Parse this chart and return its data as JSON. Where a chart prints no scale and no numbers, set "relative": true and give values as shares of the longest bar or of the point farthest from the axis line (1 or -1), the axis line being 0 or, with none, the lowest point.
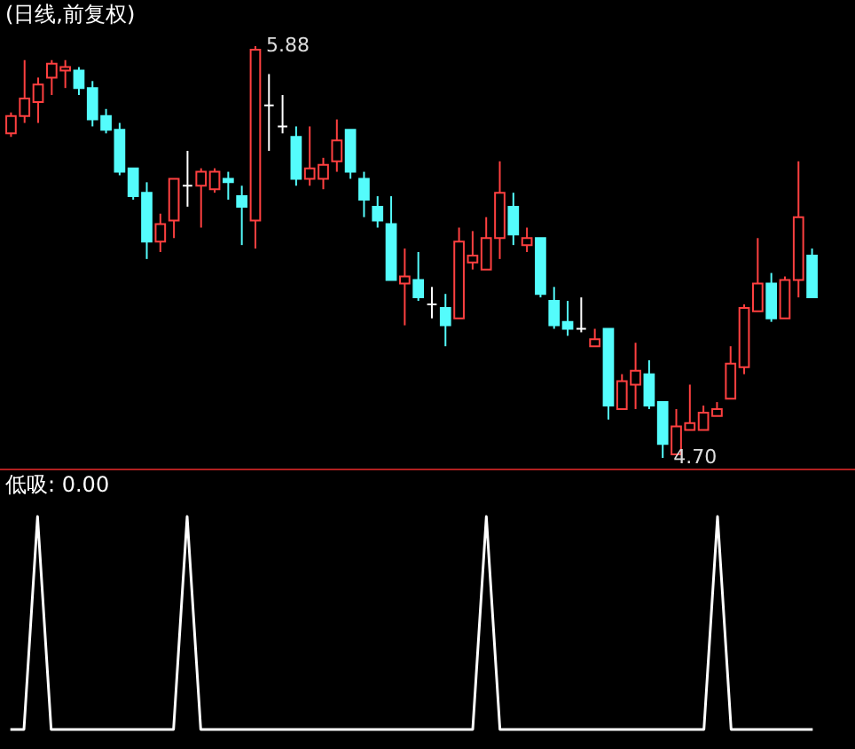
{
  "chart_data": [
    {
      "type": "candlestick",
      "title": "(日线,前复权)",
      "categories": [
        null,
        null,
        null,
        null,
        null,
        null,
        null,
        null,
        null,
        null,
        null,
        null,
        null,
        null,
        null,
        null,
        null,
        null,
        null,
        null,
        null,
        null,
        null,
        null,
        null,
        null,
        null,
        null,
        null,
        null,
        null,
        null,
        null,
        null,
        null,
        null,
        null,
        null,
        null,
        null,
        null,
        null,
        null,
        null,
        null,
        null,
        null,
        null,
        null,
        null,
        null,
        null,
        null,
        null,
        null,
        null,
        null,
        null,
        null,
        null
      ],
      "ohlc": [
        [
          5.63,
          5.69,
          5.62,
          5.68
        ],
        [
          5.68,
          5.84,
          5.66,
          5.73
        ],
        [
          5.72,
          5.79,
          5.66,
          5.77
        ],
        [
          5.79,
          5.84,
          5.74,
          5.83
        ],
        [
          5.81,
          5.84,
          5.76,
          5.82
        ],
        [
          5.81,
          5.82,
          5.74,
          5.76
        ],
        [
          5.76,
          5.78,
          5.65,
          5.67
        ],
        [
          5.68,
          5.7,
          5.63,
          5.64
        ],
        [
          5.64,
          5.66,
          5.51,
          5.52
        ],
        [
          5.53,
          5.53,
          5.44,
          5.45
        ],
        [
          5.46,
          5.49,
          5.27,
          5.32
        ],
        [
          5.32,
          5.4,
          5.29,
          5.37
        ],
        [
          5.38,
          5.5,
          5.33,
          5.5
        ],
        [
          5.48,
          5.58,
          5.42,
          5.48
        ],
        [
          5.48,
          5.53,
          5.36,
          5.52
        ],
        [
          5.47,
          5.53,
          5.46,
          5.52
        ],
        [
          5.5,
          5.52,
          5.44,
          5.49
        ],
        [
          5.45,
          5.48,
          5.31,
          5.42
        ],
        [
          5.38,
          5.88,
          5.3,
          5.87
        ],
        [
          5.71,
          5.8,
          5.58,
          5.71
        ],
        [
          5.65,
          5.74,
          5.63,
          5.65
        ],
        [
          5.62,
          5.65,
          5.48,
          5.5
        ],
        [
          5.5,
          5.65,
          5.48,
          5.53
        ],
        [
          5.5,
          5.56,
          5.47,
          5.54
        ],
        [
          5.55,
          5.67,
          5.52,
          5.61
        ],
        [
          5.64,
          5.64,
          5.5,
          5.52
        ],
        [
          5.5,
          5.52,
          5.39,
          5.44
        ],
        [
          5.42,
          5.45,
          5.36,
          5.38
        ],
        [
          5.37,
          5.45,
          5.21,
          5.21
        ],
        [
          5.2,
          5.3,
          5.08,
          5.22
        ],
        [
          5.21,
          5.29,
          5.15,
          5.16
        ],
        [
          5.14,
          5.19,
          5.1,
          5.14
        ],
        [
          5.13,
          5.17,
          5.02,
          5.08
        ],
        [
          5.1,
          5.36,
          5.1,
          5.32
        ],
        [
          5.26,
          5.35,
          5.24,
          5.28
        ],
        [
          5.24,
          5.39,
          5.24,
          5.33
        ],
        [
          5.33,
          5.55,
          5.27,
          5.46
        ],
        [
          5.42,
          5.46,
          5.31,
          5.34
        ],
        [
          5.31,
          5.36,
          5.29,
          5.33
        ],
        [
          5.33,
          5.33,
          5.16,
          5.17
        ],
        [
          5.15,
          5.19,
          5.07,
          5.08
        ],
        [
          5.09,
          5.15,
          5.05,
          5.07
        ],
        [
          5.07,
          5.16,
          5.06,
          5.07
        ],
        [
          5.02,
          5.07,
          5.02,
          5.04
        ],
        [
          5.07,
          5.07,
          4.81,
          4.85
        ],
        [
          4.84,
          4.94,
          4.84,
          4.92
        ],
        [
          4.91,
          5.03,
          4.84,
          4.95
        ],
        [
          4.94,
          4.98,
          4.84,
          4.85
        ],
        [
          4.86,
          4.86,
          4.7,
          4.74
        ],
        [
          4.71,
          4.84,
          4.71,
          4.79
        ],
        [
          4.78,
          4.91,
          4.78,
          4.8
        ],
        [
          4.78,
          4.85,
          4.78,
          4.83
        ],
        [
          4.82,
          4.86,
          4.82,
          4.84
        ],
        [
          4.87,
          5.02,
          4.87,
          4.97
        ],
        [
          4.96,
          5.14,
          4.94,
          5.13
        ],
        [
          5.12,
          5.33,
          5.12,
          5.2
        ],
        [
          5.2,
          5.23,
          5.09,
          5.1
        ],
        [
          5.1,
          5.22,
          5.1,
          5.21
        ],
        [
          5.21,
          5.55,
          5.16,
          5.39
        ],
        [
          5.28,
          5.3,
          5.16,
          5.16
        ]
      ],
      "colors": [
        "#ff4040",
        "#ff4040",
        "#ff4040",
        "#ff4040",
        "#ff4040",
        "#54fcfc",
        "#54fcfc",
        "#54fcfc",
        "#54fcfc",
        "#54fcfc",
        "#54fcfc",
        "#ff4040",
        "#ff4040",
        "#ffffff",
        "#ff4040",
        "#ff4040",
        "#54fcfc",
        "#54fcfc",
        "#ff4040",
        "#ffffff",
        "#ffffff",
        "#54fcfc",
        "#ff4040",
        "#ff4040",
        "#ff4040",
        "#54fcfc",
        "#54fcfc",
        "#54fcfc",
        "#54fcfc",
        "#ff4040",
        "#54fcfc",
        "#ffffff",
        "#54fcfc",
        "#ff4040",
        "#ff4040",
        "#ff4040",
        "#ff4040",
        "#54fcfc",
        "#ff4040",
        "#54fcfc",
        "#54fcfc",
        "#54fcfc",
        "#ffffff",
        "#ff4040",
        "#54fcfc",
        "#ff4040",
        "#ff4040",
        "#54fcfc",
        "#54fcfc",
        "#ff4040",
        "#ff4040",
        "#ff4040",
        "#ff4040",
        "#ff4040",
        "#ff4040",
        "#ff4040",
        "#54fcfc",
        "#ff4040",
        "#ff4040",
        "#54fcfc"
      ],
      "annotations": [
        "5.88",
        "4.70"
      ]
    },
    {
      "type": "line",
      "title": "低吸: 0.00",
      "relative": true,
      "categories": [
        null,
        null,
        null,
        null,
        null,
        null,
        null,
        null,
        null,
        null,
        null,
        null,
        null,
        null,
        null,
        null,
        null,
        null,
        null,
        null,
        null,
        null,
        null,
        null,
        null,
        null,
        null,
        null,
        null,
        null,
        null,
        null,
        null,
        null,
        null,
        null,
        null,
        null,
        null,
        null,
        null,
        null,
        null,
        null,
        null,
        null,
        null,
        null,
        null,
        null,
        null,
        null,
        null,
        null,
        null,
        null,
        null,
        null,
        null,
        null
      ],
      "series": [
        {
          "color": "#ffffff",
          "values": [
            0,
            0,
            1,
            0,
            0,
            0,
            0,
            0,
            0,
            0,
            0,
            0,
            0,
            1,
            0,
            0,
            0,
            0,
            0,
            0,
            0,
            0,
            0,
            0,
            0,
            0,
            0,
            0,
            0,
            0,
            0,
            0,
            0,
            0,
            0,
            1,
            0,
            0,
            0,
            0,
            0,
            0,
            0,
            0,
            0,
            0,
            0,
            0,
            0,
            0,
            0,
            0,
            1,
            0,
            0,
            0,
            0,
            0,
            0,
            0
          ]
        }
      ],
      "marker": "none",
      "line_style": "solid"
    }
  ]
}
